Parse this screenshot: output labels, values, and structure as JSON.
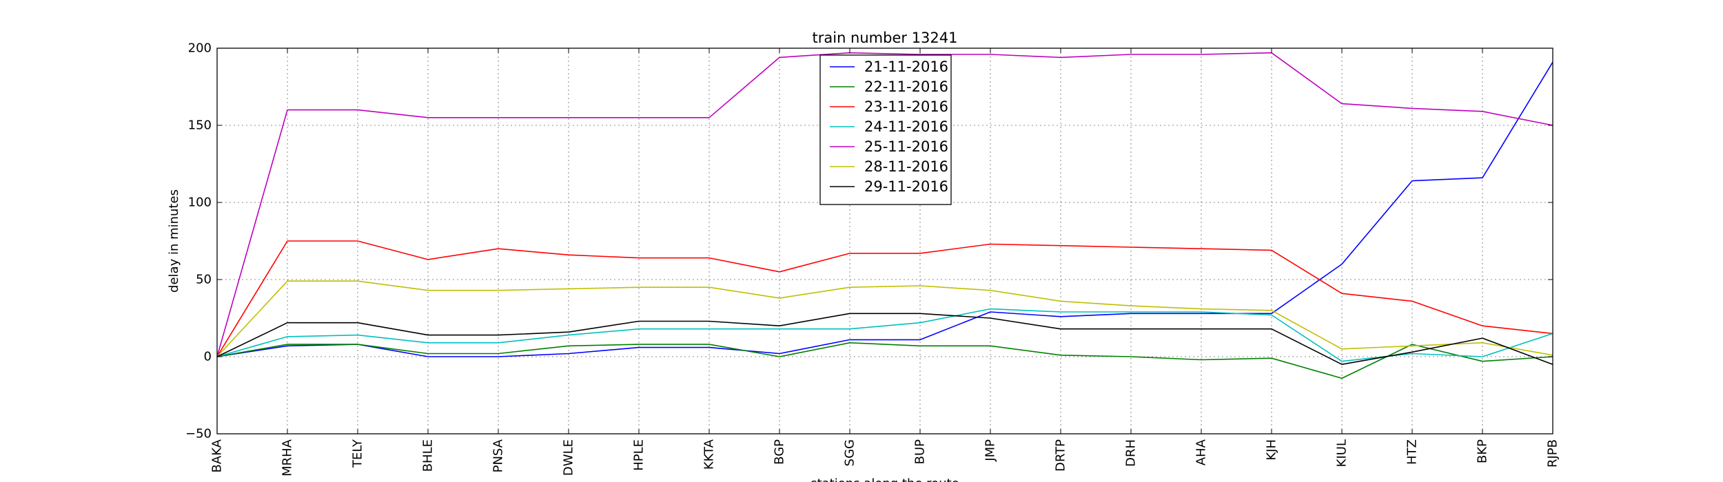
{
  "chart_data": {
    "type": "line",
    "title": "train number 13241",
    "xlabel": "stations along the route",
    "ylabel": "delay in minutes",
    "ylim": [
      -50,
      200
    ],
    "yticks": [
      -50,
      0,
      50,
      100,
      150,
      200
    ],
    "grid": true,
    "legend_position": "top-center",
    "categories": [
      "BAKA",
      "MRHA",
      "TELY",
      "BHLE",
      "PNSA",
      "DWLE",
      "HPLE",
      "KKTA",
      "BGP",
      "SGG",
      "BUP",
      "JMP",
      "DRTP",
      "DRH",
      "AHA",
      "KJH",
      "KIUL",
      "HTZ",
      "BKP",
      "RJPB"
    ],
    "series": [
      {
        "name": "21-11-2016",
        "color": "#0000ff",
        "values": [
          0,
          7,
          8,
          0,
          0,
          2,
          6,
          6,
          2,
          11,
          11,
          29,
          26,
          28,
          28,
          28,
          60,
          114,
          116,
          191
        ]
      },
      {
        "name": "22-11-2016",
        "color": "#008000",
        "values": [
          0,
          8,
          8,
          2,
          2,
          7,
          8,
          8,
          0,
          9,
          7,
          7,
          1,
          0,
          -2,
          -1,
          -14,
          8,
          -3,
          0
        ]
      },
      {
        "name": "23-11-2016",
        "color": "#ff0000",
        "values": [
          0,
          75,
          75,
          63,
          70,
          66,
          64,
          64,
          55,
          67,
          67,
          73,
          72,
          71,
          70,
          69,
          41,
          36,
          20,
          15
        ]
      },
      {
        "name": "24-11-2016",
        "color": "#00bfbf",
        "values": [
          0,
          13,
          14,
          9,
          9,
          14,
          18,
          18,
          18,
          18,
          22,
          31,
          29,
          29,
          29,
          27,
          -3,
          2,
          0,
          15
        ]
      },
      {
        "name": "25-11-2016",
        "color": "#bf00bf",
        "values": [
          0,
          160,
          160,
          155,
          155,
          155,
          155,
          155,
          194,
          197,
          196,
          196,
          194,
          196,
          196,
          197,
          164,
          161,
          159,
          150
        ]
      },
      {
        "name": "28-11-2016",
        "color": "#bfbf00",
        "values": [
          0,
          49,
          49,
          43,
          43,
          44,
          45,
          45,
          38,
          45,
          46,
          43,
          36,
          33,
          31,
          30,
          5,
          7,
          9,
          1
        ]
      },
      {
        "name": "29-11-2016",
        "color": "#000000",
        "values": [
          0,
          22,
          22,
          14,
          14,
          16,
          23,
          23,
          20,
          28,
          28,
          25,
          18,
          18,
          18,
          18,
          -5,
          3,
          12,
          -5
        ]
      }
    ]
  }
}
